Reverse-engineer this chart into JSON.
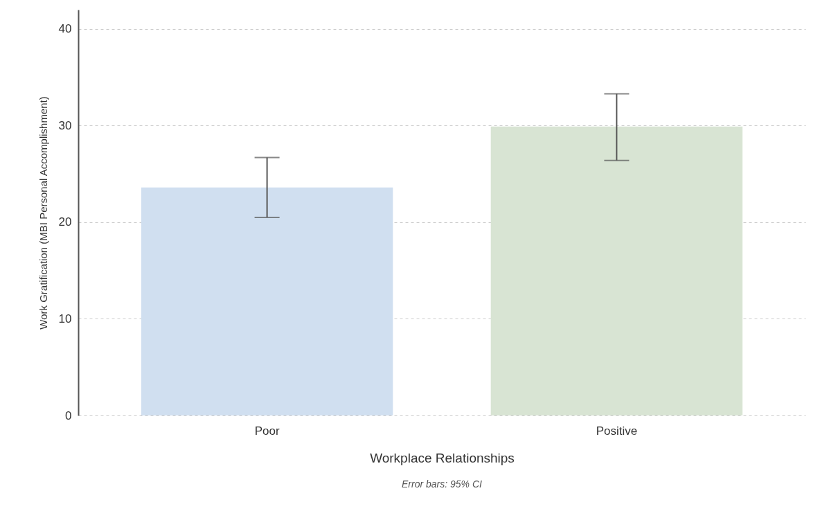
{
  "chart_data": {
    "type": "bar",
    "categories": [
      "Poor",
      "Positive"
    ],
    "values": [
      23.6,
      29.9
    ],
    "colors": [
      "#d0dff0",
      "#d8e4d3"
    ],
    "errors": [
      [
        20.5,
        26.7
      ],
      [
        26.4,
        33.3
      ]
    ],
    "xlabel": "Workplace Relationships",
    "ylabel": "Work Gratification (MBI Personal Accomplishment)",
    "ylim": [
      0,
      42
    ],
    "yticks": [
      0,
      10,
      20,
      30,
      40
    ],
    "grid": "y",
    "annotations": [
      "Error bars: 95% CI"
    ]
  }
}
